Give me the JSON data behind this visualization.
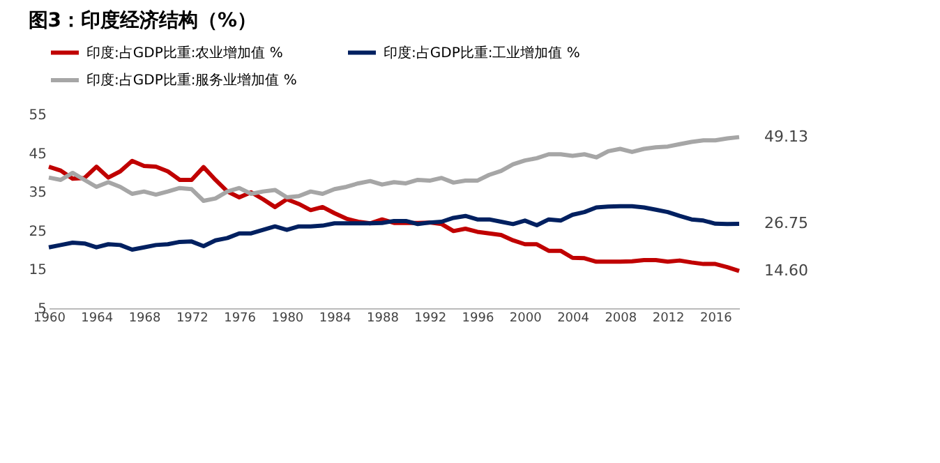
{
  "chart_data": {
    "type": "line",
    "title": "图3：印度经济结构（%）",
    "legend": "top",
    "grid": false,
    "marker": "none",
    "line_style": "solid",
    "x": [
      1960,
      1961,
      1962,
      1963,
      1964,
      1965,
      1966,
      1967,
      1968,
      1969,
      1970,
      1971,
      1972,
      1973,
      1974,
      1975,
      1976,
      1977,
      1978,
      1979,
      1980,
      1981,
      1982,
      1983,
      1984,
      1985,
      1986,
      1987,
      1988,
      1989,
      1990,
      1991,
      1992,
      1993,
      1994,
      1995,
      1996,
      1997,
      1998,
      1999,
      2000,
      2001,
      2002,
      2003,
      2004,
      2005,
      2006,
      2007,
      2008,
      2009,
      2010,
      2011,
      2012,
      2013,
      2014,
      2015,
      2016,
      2017,
      2018
    ],
    "xlim": [
      1960,
      2018
    ],
    "xticks": [
      1960,
      1964,
      1968,
      1972,
      1976,
      1980,
      1984,
      1988,
      1992,
      1996,
      2000,
      2004,
      2008,
      2012,
      2016
    ],
    "ylim": [
      5,
      55
    ],
    "yticks": [
      5,
      15,
      25,
      35,
      45,
      55
    ],
    "series": [
      {
        "name": "印度:占GDP比重:农业增加值 %",
        "color": "#c00000",
        "values": [
          41.5,
          40.5,
          38.4,
          38.6,
          41.5,
          38.7,
          40.3,
          43,
          41.7,
          41.5,
          40.3,
          38.1,
          38.1,
          41.4,
          38.1,
          35.1,
          33.6,
          34.9,
          33.1,
          31.1,
          33.1,
          31.9,
          30.3,
          31.1,
          29.5,
          28.1,
          27.3,
          26.9,
          27.9,
          27,
          27,
          27,
          27.1,
          26.7,
          24.9,
          25.5,
          24.7,
          24.3,
          23.9,
          22.5,
          21.5,
          21.5,
          19.8,
          19.8,
          18,
          17.9,
          17,
          17,
          17,
          17.1,
          17.4,
          17.4,
          17,
          17.3,
          16.8,
          16.4,
          16.4,
          15.6,
          14.6
        ],
        "value_labels": [
          null,
          null,
          null,
          null,
          null,
          null,
          null,
          null,
          null,
          null,
          null,
          null,
          null,
          null,
          null,
          null,
          null,
          null,
          null,
          null,
          null,
          null,
          null,
          null,
          null,
          null,
          null,
          null,
          null,
          null,
          null,
          null,
          null,
          null,
          null,
          null,
          null,
          null,
          null,
          null,
          null,
          null,
          null,
          null,
          null,
          null,
          null,
          null,
          null,
          null,
          null,
          null,
          null,
          null,
          null,
          null,
          null,
          null,
          "14.60"
        ]
      },
      {
        "name": "印度:占GDP比重:工业增加值 %",
        "color": "#002060",
        "values": [
          20.7,
          21.3,
          21.9,
          21.7,
          20.7,
          21.5,
          21.3,
          20.1,
          20.7,
          21.3,
          21.5,
          22.1,
          22.2,
          21,
          22.5,
          23.1,
          24.3,
          24.3,
          25.2,
          26.1,
          25.2,
          26.1,
          26.1,
          26.3,
          26.9,
          26.9,
          26.9,
          26.9,
          27,
          27.5,
          27.5,
          26.7,
          27.1,
          27.3,
          28.3,
          28.8,
          27.9,
          27.9,
          27.3,
          26.7,
          27.6,
          26.4,
          27.9,
          27.6,
          29.1,
          29.8,
          31,
          31.2,
          31.3,
          31.3,
          31,
          30.4,
          29.8,
          28.8,
          27.9,
          27.6,
          26.8,
          26.7,
          26.75
        ],
        "value_labels": [
          null,
          null,
          null,
          null,
          null,
          null,
          null,
          null,
          null,
          null,
          null,
          null,
          null,
          null,
          null,
          null,
          null,
          null,
          null,
          null,
          null,
          null,
          null,
          null,
          null,
          null,
          null,
          null,
          null,
          null,
          null,
          null,
          null,
          null,
          null,
          null,
          null,
          null,
          null,
          null,
          null,
          null,
          null,
          null,
          null,
          null,
          null,
          null,
          null,
          null,
          null,
          null,
          null,
          null,
          null,
          null,
          null,
          null,
          "26.75"
        ]
      },
      {
        "name": "印度:占GDP比重:服务业增加值 %",
        "color": "#a6a6a6",
        "values": [
          38.7,
          38.1,
          39.9,
          38.1,
          36.3,
          37.5,
          36.3,
          34.5,
          35.1,
          34.3,
          35.1,
          36,
          35.7,
          32.7,
          33.3,
          35.1,
          36,
          34.5,
          35.1,
          35.5,
          33.6,
          33.9,
          35.1,
          34.5,
          35.7,
          36.3,
          37.2,
          37.8,
          36.9,
          37.5,
          37.2,
          38.1,
          37.9,
          38.6,
          37.4,
          37.9,
          37.9,
          39.4,
          40.4,
          42.1,
          43.1,
          43.7,
          44.7,
          44.7,
          44.3,
          44.7,
          43.9,
          45.5,
          46.1,
          45.3,
          46.1,
          46.5,
          46.7,
          47.3,
          47.9,
          48.3,
          48.3,
          48.8,
          49.13
        ],
        "value_labels": [
          null,
          null,
          null,
          null,
          null,
          null,
          null,
          null,
          null,
          null,
          null,
          null,
          null,
          null,
          null,
          null,
          null,
          null,
          null,
          null,
          null,
          null,
          null,
          null,
          null,
          null,
          null,
          null,
          null,
          null,
          null,
          null,
          null,
          null,
          null,
          null,
          null,
          null,
          null,
          null,
          null,
          null,
          null,
          null,
          null,
          null,
          null,
          null,
          null,
          null,
          null,
          null,
          null,
          null,
          null,
          null,
          null,
          null,
          "49.13"
        ]
      }
    ]
  }
}
